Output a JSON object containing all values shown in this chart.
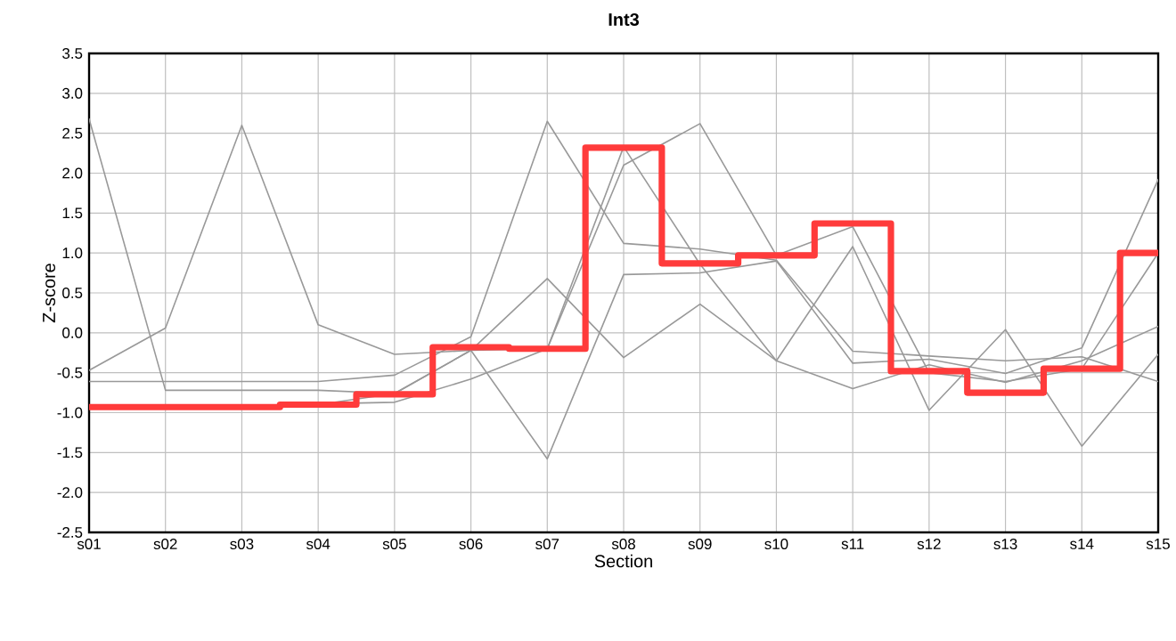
{
  "chart_data": {
    "type": "line",
    "title": "Int3",
    "xlabel": "Section",
    "ylabel": "Z-score",
    "categories": [
      "s01",
      "s02",
      "s03",
      "s04",
      "s05",
      "s06",
      "s07",
      "s08",
      "s09",
      "s10",
      "s11",
      "s12",
      "s13",
      "s14",
      "s15"
    ],
    "ylim": [
      -2.5,
      3.5
    ],
    "yticks": [
      -2.5,
      {
        "value": -2,
        "label": "-2.0"
      },
      -1.5,
      {
        "value": -1,
        "label": "-1.0"
      },
      -0.5,
      {
        "value": 0,
        "label": "0.0"
      },
      0.5,
      {
        "value": 1,
        "label": "1.0"
      },
      1.5,
      {
        "value": 2,
        "label": "2.0"
      },
      2.5,
      {
        "value": 3,
        "label": "3.0"
      },
      3.5
    ],
    "grid": true,
    "marker": "none",
    "series": [
      {
        "color": "#999999",
        "values": [
          2.68,
          -0.72,
          -0.72,
          -0.72,
          -0.76,
          -0.22,
          0.68,
          -0.31,
          0.36,
          -0.35,
          1.08,
          -0.97,
          0.04,
          -1.42,
          -0.27
        ]
      },
      {
        "color": "#999999",
        "values": [
          -0.47,
          0.06,
          2.6,
          0.1,
          -0.27,
          -0.22,
          -1.58,
          0.73,
          0.75,
          0.9,
          -0.38,
          -0.33,
          -0.51,
          -0.19,
          1.92
        ]
      },
      {
        "color": "#999999",
        "values": [
          -0.61,
          -0.61,
          -0.61,
          -0.61,
          -0.53,
          -0.05,
          2.65,
          1.12,
          1.05,
          0.91,
          -0.23,
          -0.29,
          -0.35,
          -0.3,
          -0.61
        ]
      },
      {
        "color": "#999999",
        "values": [
          -0.93,
          -0.93,
          -0.93,
          -0.89,
          -0.87,
          -0.58,
          -0.2,
          2.1,
          2.62,
          0.97,
          1.33,
          -0.5,
          -0.61,
          -0.45,
          1.0
        ]
      },
      {
        "color": "#999999",
        "values": [
          -0.93,
          -0.93,
          -0.93,
          -0.9,
          -0.76,
          -0.22,
          -0.2,
          2.33,
          0.86,
          -0.35,
          -0.7,
          -0.4,
          -0.62,
          -0.35,
          0.08
        ]
      },
      {
        "type": "step",
        "color": "#ff3b3b",
        "values": [
          -0.93,
          -0.93,
          -0.93,
          -0.9,
          -0.77,
          -0.18,
          -0.2,
          2.32,
          0.87,
          0.97,
          1.37,
          -0.48,
          -0.75,
          -0.45,
          1.0
        ]
      }
    ]
  }
}
